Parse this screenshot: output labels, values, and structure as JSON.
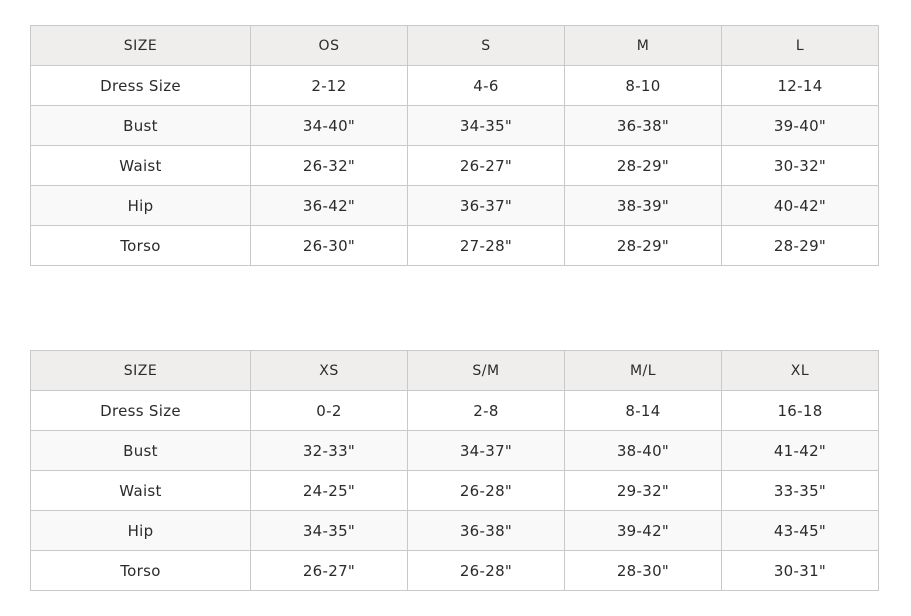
{
  "colors": {
    "page_background": "#ffffff",
    "header_background": "#efeeed",
    "stripe_background": "#f9f9f9",
    "border_outer": "#b3b3b3",
    "border_inner": "#c9c9c9",
    "text": "#2b2b2b"
  },
  "chart_data": [
    {
      "type": "table",
      "name": "size-chart-os-s-m-l",
      "columns": [
        "SIZE",
        "OS",
        "S",
        "M",
        "L"
      ],
      "rows": [
        {
          "label": "Dress Size",
          "values": [
            "2-12",
            "4-6",
            "8-10",
            "12-14"
          ]
        },
        {
          "label": "Bust",
          "values": [
            "34-40\"",
            "34-35\"",
            "36-38\"",
            "39-40\""
          ]
        },
        {
          "label": "Waist",
          "values": [
            "26-32\"",
            "26-27\"",
            "28-29\"",
            "30-32\""
          ]
        },
        {
          "label": "Hip",
          "values": [
            "36-42\"",
            "36-37\"",
            "38-39\"",
            "40-42\""
          ]
        },
        {
          "label": "Torso",
          "values": [
            "26-30\"",
            "27-28\"",
            "28-29\"",
            "28-29\""
          ]
        }
      ]
    },
    {
      "type": "table",
      "name": "size-chart-xs-sm-ml-xl",
      "columns": [
        "SIZE",
        "XS",
        "S/M",
        "M/L",
        "XL"
      ],
      "rows": [
        {
          "label": "Dress Size",
          "values": [
            "0-2",
            "2-8",
            "8-14",
            "16-18"
          ]
        },
        {
          "label": "Bust",
          "values": [
            "32-33\"",
            "34-37\"",
            "38-40\"",
            "41-42\""
          ]
        },
        {
          "label": "Waist",
          "values": [
            "24-25\"",
            "26-28\"",
            "29-32\"",
            "33-35\""
          ]
        },
        {
          "label": "Hip",
          "values": [
            "34-35\"",
            "36-38\"",
            "39-42\"",
            "43-45\""
          ]
        },
        {
          "label": "Torso",
          "values": [
            "26-27\"",
            "26-28\"",
            "28-30\"",
            "30-31\""
          ]
        }
      ]
    }
  ]
}
